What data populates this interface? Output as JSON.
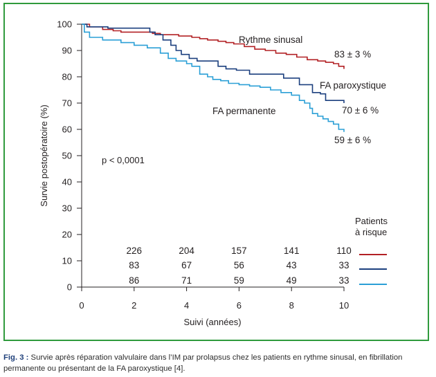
{
  "chart_data": {
    "type": "line",
    "ylabel": "Survie postopératoire (%)",
    "xlabel": "Suivi (années)",
    "xlim": [
      0,
      10
    ],
    "ylim": [
      0,
      100
    ],
    "x_ticks": [
      "0",
      "2",
      "4",
      "6",
      "8",
      "10"
    ],
    "y_ticks": [
      "0",
      "10",
      "20",
      "30",
      "40",
      "50",
      "60",
      "70",
      "80",
      "90",
      "100"
    ],
    "grid": false,
    "pvalue": "p < 0,0001",
    "series": [
      {
        "name": "Rythme sinusal",
        "end_label": "83 ± 3 %",
        "color": "#b22024",
        "at_risk": [
          "226",
          "204",
          "157",
          "141",
          "110"
        ],
        "points": [
          [
            0,
            100
          ],
          [
            0.3,
            99
          ],
          [
            0.8,
            98
          ],
          [
            1.2,
            97.5
          ],
          [
            1.5,
            97
          ],
          [
            2.3,
            97
          ],
          [
            2.7,
            96.5
          ],
          [
            3,
            96
          ],
          [
            3.4,
            96
          ],
          [
            3.7,
            95.5
          ],
          [
            4,
            95.5
          ],
          [
            4.2,
            95
          ],
          [
            4.5,
            94.5
          ],
          [
            4.8,
            94
          ],
          [
            5.2,
            93.5
          ],
          [
            5.5,
            93
          ],
          [
            5.8,
            92.5
          ],
          [
            6.2,
            91.5
          ],
          [
            6.6,
            90.5
          ],
          [
            7,
            90
          ],
          [
            7.4,
            89
          ],
          [
            7.8,
            88.5
          ],
          [
            8.2,
            87.5
          ],
          [
            8.6,
            86.5
          ],
          [
            9,
            86
          ],
          [
            9.3,
            85.5
          ],
          [
            9.6,
            85
          ],
          [
            9.8,
            84
          ],
          [
            10,
            83
          ]
        ]
      },
      {
        "name": "FA paroxystique",
        "end_label": "70 ± 6 %",
        "color": "#1b3f7e",
        "at_risk": [
          "83",
          "67",
          "56",
          "43",
          "33"
        ],
        "points": [
          [
            0,
            100
          ],
          [
            0.2,
            99
          ],
          [
            1,
            98.5
          ],
          [
            2.3,
            98.5
          ],
          [
            2.6,
            97
          ],
          [
            2.8,
            96
          ],
          [
            3.1,
            94
          ],
          [
            3.4,
            92
          ],
          [
            3.6,
            90
          ],
          [
            3.8,
            88.5
          ],
          [
            4.1,
            87
          ],
          [
            4.4,
            86
          ],
          [
            5,
            86
          ],
          [
            5.2,
            84
          ],
          [
            5.5,
            83
          ],
          [
            5.9,
            82.5
          ],
          [
            6.3,
            82.5
          ],
          [
            6.4,
            81
          ],
          [
            7,
            81
          ],
          [
            7.5,
            81
          ],
          [
            7.7,
            79.5
          ],
          [
            8.2,
            79.5
          ],
          [
            8.3,
            77
          ],
          [
            8.7,
            77
          ],
          [
            8.8,
            74
          ],
          [
            9.1,
            73.5
          ],
          [
            9.3,
            71
          ],
          [
            10,
            71
          ],
          [
            10,
            70
          ]
        ]
      },
      {
        "name": "FA permanente",
        "end_label": "59 ± 6 %",
        "color": "#2a9fd6",
        "at_risk": [
          "86",
          "71",
          "59",
          "49",
          "33"
        ],
        "points": [
          [
            0,
            100
          ],
          [
            0.1,
            97
          ],
          [
            0.3,
            95
          ],
          [
            0.8,
            94
          ],
          [
            1.5,
            93
          ],
          [
            2,
            92
          ],
          [
            2.5,
            91
          ],
          [
            3,
            89
          ],
          [
            3.3,
            87
          ],
          [
            3.6,
            86
          ],
          [
            4,
            85
          ],
          [
            4.2,
            84
          ],
          [
            4.5,
            81
          ],
          [
            4.8,
            80
          ],
          [
            5,
            79
          ],
          [
            5.3,
            78.5
          ],
          [
            5.6,
            77.5
          ],
          [
            6,
            77
          ],
          [
            6.4,
            76.5
          ],
          [
            6.8,
            76
          ],
          [
            7.2,
            75
          ],
          [
            7.6,
            74
          ],
          [
            8,
            73
          ],
          [
            8.3,
            71
          ],
          [
            8.5,
            70
          ],
          [
            8.7,
            68
          ],
          [
            8.8,
            66
          ],
          [
            9,
            65
          ],
          [
            9.2,
            64
          ],
          [
            9.4,
            63
          ],
          [
            9.6,
            62
          ],
          [
            9.8,
            60
          ],
          [
            10,
            59
          ]
        ]
      }
    ],
    "at_risk_title": [
      "Patients",
      "à risque"
    ],
    "at_risk_x": [
      2,
      4,
      6,
      8,
      10
    ]
  },
  "caption": {
    "label": "Fig. 3 :",
    "text": " Survie après réparation valvulaire dans l’IM par prolapsus chez les patients en rythme sinusal, en fibrillation permanente ou présentant de la FA paroxystique [4]."
  }
}
